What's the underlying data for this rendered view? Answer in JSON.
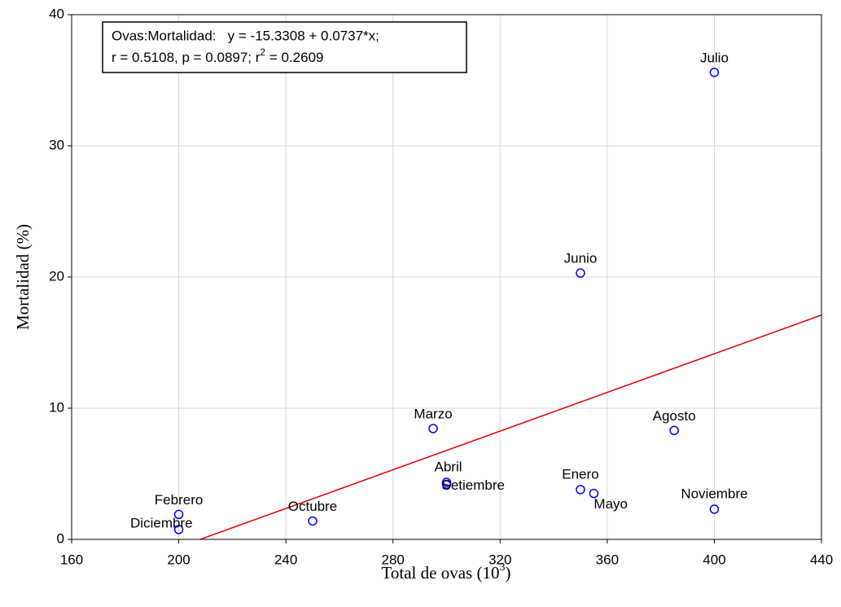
{
  "chart_data": {
    "type": "scatter",
    "x_label": {
      "text": "Total de ovas (10",
      "sup": "3",
      "end": ")"
    },
    "y_label": "Mortalidad (%)",
    "annotation": {
      "line1": "Ovas:Mortalidad:   y = -15.3308 + 0.0737*x;",
      "line2": "r = 0.5108, p = 0.0897; r",
      "line2_sup": "2",
      "line2_end": " = 0.2609"
    },
    "regression": {
      "intercept": -15.3308,
      "slope": 0.0737,
      "color": "#e00000"
    },
    "labels": [
      "Julio",
      "Junio",
      "Marzo",
      "Agosto",
      "Abril",
      "Setiembre",
      "Enero",
      "Mayo",
      "Noviembre",
      "Octubre",
      "Febrero",
      "Diciembre"
    ],
    "x": [
      400,
      350,
      295,
      385,
      300,
      300,
      350,
      355,
      400,
      250,
      200,
      200
    ],
    "values": [
      35.6,
      20.3,
      8.45,
      8.3,
      4.35,
      4.2,
      3.8,
      3.5,
      2.3,
      1.4,
      1.9,
      0.75
    ],
    "color": "#0000ff",
    "xlim": [
      160,
      440
    ],
    "xticks": [
      160,
      200,
      240,
      280,
      320,
      360,
      400,
      440
    ],
    "ylim": [
      0,
      40
    ],
    "yticks": [
      0,
      10,
      20,
      30,
      40
    ],
    "grid": true
  }
}
